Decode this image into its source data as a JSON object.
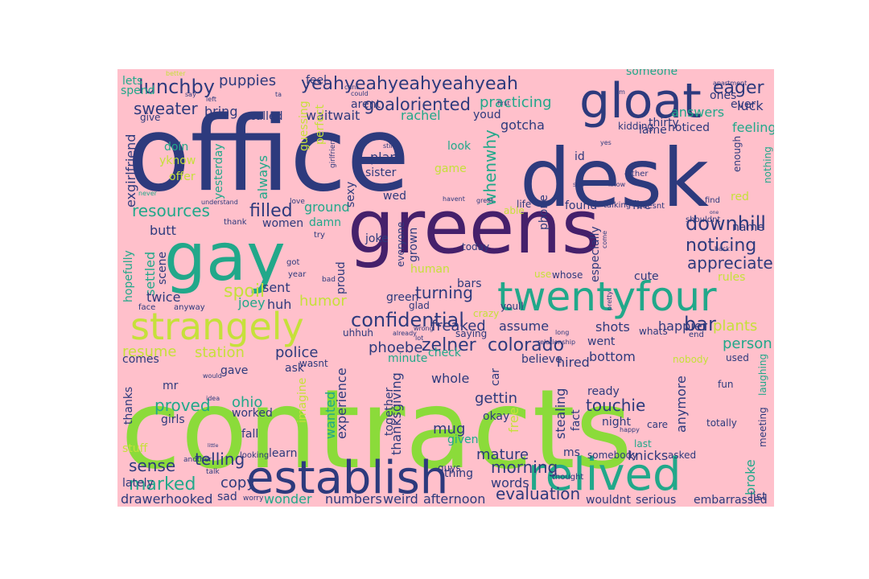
{
  "background": "#ffc0cb",
  "palette": {
    "navy": "#2d3a7d",
    "blue": "#2b6a8e",
    "purple": "#45206b",
    "teal": "#21a88a",
    "green": "#8bdb3a",
    "lime": "#c6e03a"
  },
  "words": [
    {
      "text": "office",
      "color": "navy"
    },
    {
      "text": "desk",
      "color": "navy"
    },
    {
      "text": "gloat",
      "color": "navy"
    },
    {
      "text": "greens",
      "color": "purple"
    },
    {
      "text": "gay",
      "color": "teal"
    },
    {
      "text": "contracts",
      "color": "green"
    },
    {
      "text": "twentyfour",
      "color": "teal"
    },
    {
      "text": "strangely",
      "color": "lime"
    },
    {
      "text": "establish",
      "color": "navy"
    },
    {
      "text": "relived",
      "color": "teal"
    },
    {
      "text": "yeahyeahyeahyeahyeah",
      "color": "navy"
    },
    {
      "text": "lunchby",
      "color": "navy"
    },
    {
      "text": "puppies",
      "color": "navy"
    },
    {
      "text": "goaloriented",
      "color": "navy"
    },
    {
      "text": "eager",
      "color": "navy"
    },
    {
      "text": "sweater",
      "color": "navy"
    },
    {
      "text": "practicing",
      "color": "teal"
    },
    {
      "text": "confidential",
      "color": "navy"
    },
    {
      "text": "colorado",
      "color": "navy"
    },
    {
      "text": "downhill",
      "color": "navy"
    },
    {
      "text": "noticing",
      "color": "navy"
    },
    {
      "text": "appreciate",
      "color": "navy"
    },
    {
      "text": "resources",
      "color": "teal"
    },
    {
      "text": "filled",
      "color": "navy"
    },
    {
      "text": "zelner",
      "color": "navy"
    },
    {
      "text": "whenwhy",
      "color": "teal"
    },
    {
      "text": "freaked",
      "color": "navy"
    },
    {
      "text": "turning",
      "color": "navy"
    },
    {
      "text": "evaluation",
      "color": "navy"
    },
    {
      "text": "telling",
      "color": "navy"
    },
    {
      "text": "marked",
      "color": "teal"
    },
    {
      "text": "sense",
      "color": "navy"
    },
    {
      "text": "proved",
      "color": "teal"
    },
    {
      "text": "morning",
      "color": "navy"
    },
    {
      "text": "mature",
      "color": "navy"
    },
    {
      "text": "spoil",
      "color": "lime"
    },
    {
      "text": "bar",
      "color": "navy"
    },
    {
      "text": "plants",
      "color": "lime"
    },
    {
      "text": "person",
      "color": "teal"
    },
    {
      "text": "station",
      "color": "lime"
    },
    {
      "text": "resume",
      "color": "lime"
    },
    {
      "text": "police",
      "color": "navy"
    },
    {
      "text": "phoebe",
      "color": "navy"
    },
    {
      "text": "humor",
      "color": "lime"
    },
    {
      "text": "gettin",
      "color": "navy"
    },
    {
      "text": "mug",
      "color": "navy"
    },
    {
      "text": "ohio",
      "color": "teal"
    },
    {
      "text": "touchie",
      "color": "navy"
    },
    {
      "text": "knicks",
      "color": "navy"
    },
    {
      "text": "broke",
      "color": "teal"
    },
    {
      "text": "hooked",
      "color": "navy"
    },
    {
      "text": "drawer",
      "color": "navy"
    },
    {
      "text": "copy",
      "color": "navy"
    },
    {
      "text": "wonder",
      "color": "teal"
    },
    {
      "text": "numbers",
      "color": "navy"
    },
    {
      "text": "afternoon",
      "color": "navy"
    },
    {
      "text": "embarrassed",
      "color": "navy"
    },
    {
      "text": "wouldnt",
      "color": "navy"
    },
    {
      "text": "serious",
      "color": "navy"
    },
    {
      "text": "words",
      "color": "navy"
    },
    {
      "text": "weird",
      "color": "navy"
    },
    {
      "text": "experience",
      "color": "navy"
    },
    {
      "text": "thanksgiving",
      "color": "navy"
    },
    {
      "text": "wanted",
      "color": "teal"
    },
    {
      "text": "stealing",
      "color": "navy"
    },
    {
      "text": "anymore",
      "color": "navy"
    },
    {
      "text": "hired",
      "color": "navy"
    },
    {
      "text": "bottom",
      "color": "navy"
    },
    {
      "text": "happier",
      "color": "navy"
    },
    {
      "text": "shots",
      "color": "navy"
    },
    {
      "text": "assume",
      "color": "navy"
    },
    {
      "text": "gotcha",
      "color": "navy"
    },
    {
      "text": "waitwait",
      "color": "navy"
    },
    {
      "text": "rachel",
      "color": "teal"
    },
    {
      "text": "answers",
      "color": "teal"
    },
    {
      "text": "luck",
      "color": "navy"
    },
    {
      "text": "feeling",
      "color": "teal"
    },
    {
      "text": "noticed",
      "color": "navy"
    },
    {
      "text": "lame",
      "color": "navy"
    },
    {
      "text": "thirty",
      "color": "navy"
    },
    {
      "text": "ones",
      "color": "navy"
    },
    {
      "text": "exgirlfriend",
      "color": "navy"
    },
    {
      "text": "always",
      "color": "teal"
    },
    {
      "text": "yesterday",
      "color": "teal"
    },
    {
      "text": "settled",
      "color": "teal"
    },
    {
      "text": "hopefully",
      "color": "teal"
    },
    {
      "text": "twice",
      "color": "navy"
    },
    {
      "text": "butt",
      "color": "navy"
    },
    {
      "text": "scene",
      "color": "navy"
    },
    {
      "text": "sent",
      "color": "navy"
    },
    {
      "text": "huh",
      "color": "navy"
    },
    {
      "text": "joey",
      "color": "teal"
    },
    {
      "text": "ground",
      "color": "teal"
    },
    {
      "text": "damn",
      "color": "teal"
    },
    {
      "text": "women",
      "color": "navy"
    },
    {
      "text": "proud",
      "color": "navy"
    },
    {
      "text": "green",
      "color": "navy"
    },
    {
      "text": "grown",
      "color": "navy"
    },
    {
      "text": "human",
      "color": "lime"
    },
    {
      "text": "bars",
      "color": "navy"
    },
    {
      "text": "especially",
      "color": "navy"
    },
    {
      "text": "cute",
      "color": "navy"
    },
    {
      "text": "rules",
      "color": "lime"
    },
    {
      "text": "name",
      "color": "navy"
    },
    {
      "text": "phone",
      "color": "navy"
    },
    {
      "text": "game",
      "color": "lime"
    },
    {
      "text": "plant",
      "color": "navy"
    },
    {
      "text": "sister",
      "color": "navy"
    },
    {
      "text": "sexy",
      "color": "navy"
    },
    {
      "text": "look",
      "color": "teal"
    },
    {
      "text": "found",
      "color": "navy"
    },
    {
      "text": "fire",
      "color": "navy"
    },
    {
      "text": "red",
      "color": "lime"
    },
    {
      "text": "went",
      "color": "navy"
    },
    {
      "text": "car",
      "color": "navy"
    },
    {
      "text": "whole",
      "color": "navy"
    },
    {
      "text": "check",
      "color": "teal"
    },
    {
      "text": "believe",
      "color": "navy"
    },
    {
      "text": "minute",
      "color": "teal"
    },
    {
      "text": "together",
      "color": "navy"
    },
    {
      "text": "given",
      "color": "teal"
    },
    {
      "text": "thing",
      "color": "navy"
    },
    {
      "text": "ready",
      "color": "navy"
    },
    {
      "text": "night",
      "color": "navy"
    },
    {
      "text": "okay",
      "color": "navy"
    },
    {
      "text": "free",
      "color": "lime"
    },
    {
      "text": "fact",
      "color": "navy"
    },
    {
      "text": "ms",
      "color": "navy"
    },
    {
      "text": "somebody",
      "color": "navy"
    },
    {
      "text": "asked",
      "color": "navy"
    },
    {
      "text": "care",
      "color": "navy"
    },
    {
      "text": "last",
      "color": "teal"
    },
    {
      "text": "totally",
      "color": "navy"
    },
    {
      "text": "meeting",
      "color": "navy"
    },
    {
      "text": "laughing",
      "color": "teal"
    },
    {
      "text": "fun",
      "color": "navy"
    },
    {
      "text": "used",
      "color": "navy"
    },
    {
      "text": "nobody",
      "color": "lime"
    },
    {
      "text": "list",
      "color": "navy"
    },
    {
      "text": "learn",
      "color": "navy"
    },
    {
      "text": "fall",
      "color": "navy"
    },
    {
      "text": "worked",
      "color": "navy"
    },
    {
      "text": "girls",
      "color": "navy"
    },
    {
      "text": "stuff",
      "color": "lime"
    },
    {
      "text": "lately",
      "color": "navy"
    },
    {
      "text": "thanks",
      "color": "navy"
    },
    {
      "text": "comes",
      "color": "navy"
    },
    {
      "text": "ask",
      "color": "navy"
    },
    {
      "text": "mr",
      "color": "navy"
    },
    {
      "text": "gave",
      "color": "navy"
    },
    {
      "text": "imagine",
      "color": "lime"
    },
    {
      "text": "wasnt",
      "color": "navy"
    },
    {
      "text": "wed",
      "color": "navy"
    },
    {
      "text": "joke",
      "color": "navy"
    },
    {
      "text": "today",
      "color": "navy"
    },
    {
      "text": "everyone",
      "color": "navy"
    },
    {
      "text": "youll",
      "color": "navy"
    },
    {
      "text": "whose",
      "color": "navy"
    },
    {
      "text": "use",
      "color": "lime"
    },
    {
      "text": "sad",
      "color": "navy"
    },
    {
      "text": "doin",
      "color": "teal"
    },
    {
      "text": "offer",
      "color": "lime"
    },
    {
      "text": "yknow",
      "color": "lime"
    },
    {
      "text": "bring",
      "color": "navy"
    },
    {
      "text": "called",
      "color": "navy"
    },
    {
      "text": "feel",
      "color": "navy"
    },
    {
      "text": "arent",
      "color": "navy"
    },
    {
      "text": "youd",
      "color": "navy"
    },
    {
      "text": "lets",
      "color": "teal"
    },
    {
      "text": "spend",
      "color": "teal"
    },
    {
      "text": "give",
      "color": "navy"
    },
    {
      "text": "someone",
      "color": "teal"
    },
    {
      "text": "ever",
      "color": "navy"
    },
    {
      "text": "kidding",
      "color": "navy"
    },
    {
      "text": "enough",
      "color": "navy"
    },
    {
      "text": "nothing",
      "color": "teal"
    },
    {
      "text": "perfect",
      "color": "lime"
    },
    {
      "text": "guessing",
      "color": "lime"
    },
    {
      "text": "uhhuh",
      "color": "navy"
    },
    {
      "text": "saying",
      "color": "navy"
    },
    {
      "text": "glad",
      "color": "navy"
    },
    {
      "text": "crazy",
      "color": "lime"
    },
    {
      "text": "whats",
      "color": "navy"
    },
    {
      "text": "end",
      "color": "navy"
    },
    {
      "text": "either",
      "color": "navy"
    },
    {
      "text": "doesnt",
      "color": "navy"
    },
    {
      "text": "find",
      "color": "navy"
    },
    {
      "text": "shouldnt",
      "color": "navy"
    },
    {
      "text": "life",
      "color": "navy"
    },
    {
      "text": "able",
      "color": "lime"
    },
    {
      "text": "talking",
      "color": "navy"
    },
    {
      "text": "thought",
      "color": "navy"
    },
    {
      "text": "guys",
      "color": "navy"
    },
    {
      "text": "looking",
      "color": "navy"
    },
    {
      "text": "worry",
      "color": "navy"
    },
    {
      "text": "talk",
      "color": "navy"
    },
    {
      "text": "another",
      "color": "navy"
    },
    {
      "text": "anyway",
      "color": "navy"
    },
    {
      "text": "face",
      "color": "navy"
    },
    {
      "text": "got",
      "color": "navy"
    },
    {
      "text": "year",
      "color": "navy"
    },
    {
      "text": "bad",
      "color": "navy"
    },
    {
      "text": "try",
      "color": "navy"
    },
    {
      "text": "love",
      "color": "navy"
    },
    {
      "text": "thank",
      "color": "navy"
    },
    {
      "text": "girlfriend",
      "color": "navy"
    },
    {
      "text": "understand",
      "color": "navy"
    },
    {
      "text": "never",
      "color": "teal"
    },
    {
      "text": "still",
      "color": "navy"
    },
    {
      "text": "could",
      "color": "navy"
    },
    {
      "text": "apartment",
      "color": "navy"
    },
    {
      "text": "back",
      "color": "navy"
    },
    {
      "text": "yes",
      "color": "navy"
    },
    {
      "text": "know",
      "color": "navy"
    },
    {
      "text": "come",
      "color": "navy"
    },
    {
      "text": "pretty",
      "color": "navy"
    },
    {
      "text": "relationship",
      "color": "navy"
    },
    {
      "text": "long",
      "color": "navy"
    },
    {
      "text": "lot",
      "color": "navy"
    },
    {
      "text": "already",
      "color": "navy"
    },
    {
      "text": "wrong",
      "color": "navy"
    },
    {
      "text": "idea",
      "color": "navy"
    },
    {
      "text": "would",
      "color": "navy"
    },
    {
      "text": "happy",
      "color": "navy"
    },
    {
      "text": "little",
      "color": "navy"
    },
    {
      "text": "say",
      "color": "navy"
    },
    {
      "text": "left",
      "color": "navy"
    },
    {
      "text": "ta",
      "color": "navy"
    },
    {
      "text": "um",
      "color": "navy"
    },
    {
      "text": "id",
      "color": "navy"
    },
    {
      "text": "great",
      "color": "navy"
    },
    {
      "text": "havent",
      "color": "navy"
    },
    {
      "text": "see",
      "color": "navy"
    },
    {
      "text": "one",
      "color": "navy"
    },
    {
      "text": "first",
      "color": "navy"
    },
    {
      "text": "better",
      "color": "lime"
    },
    {
      "text": "cant",
      "color": "navy"
    }
  ]
}
